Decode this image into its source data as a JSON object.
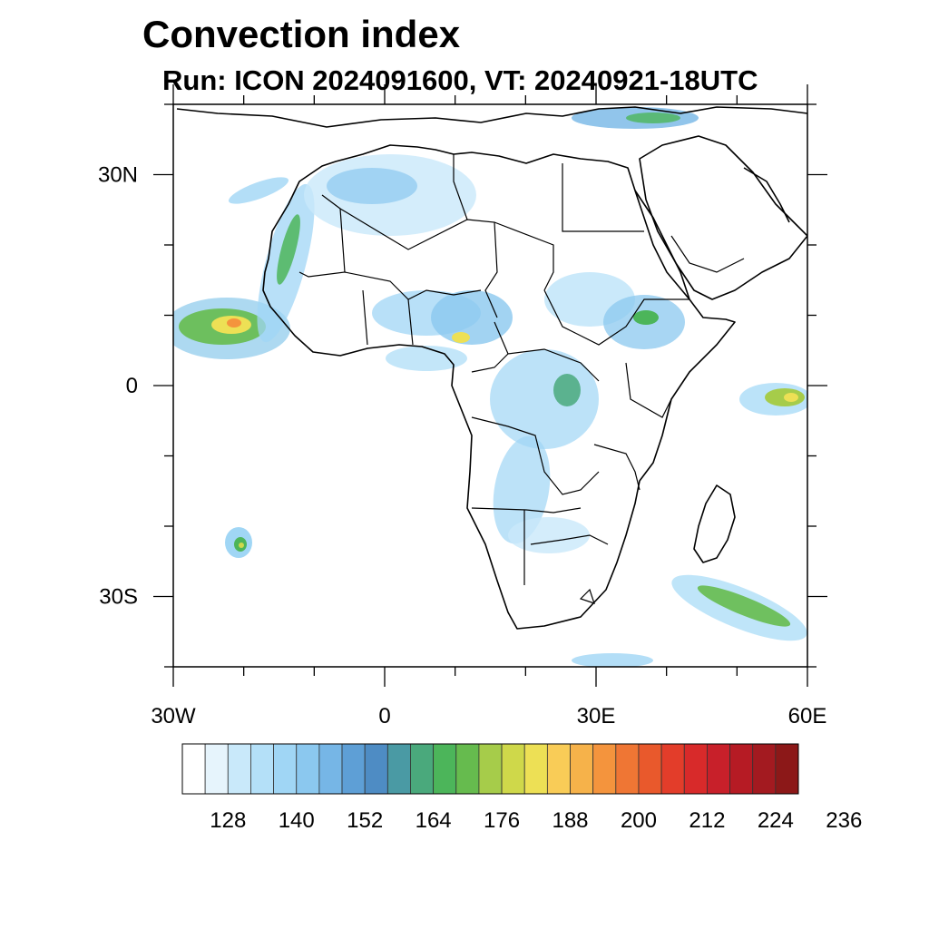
{
  "title": "Convection index",
  "subtitle": "Run: ICON 2024091600,  VT: 20240921-18UTC",
  "map": {
    "region": "Africa",
    "lon_range": [
      -30,
      60
    ],
    "lat_range": [
      -40,
      40
    ],
    "lat_ticks": [
      {
        "value": 30,
        "label": "30N"
      },
      {
        "value": 0,
        "label": "0"
      },
      {
        "value": -30,
        "label": "30S"
      }
    ],
    "lon_ticks": [
      {
        "value": -30,
        "label": "30W"
      },
      {
        "value": 0,
        "label": "0"
      },
      {
        "value": 30,
        "label": "30E"
      },
      {
        "value": 60,
        "label": "60E"
      }
    ]
  },
  "colorbar": {
    "colors": [
      "#ffffff",
      "#e6f4fc",
      "#c9e9fa",
      "#b4e0f8",
      "#a0d6f5",
      "#8bc8ef",
      "#76b6e6",
      "#5e9fd6",
      "#4e8cc4",
      "#4a9aa4",
      "#4aa97c",
      "#4cb55a",
      "#66bb4e",
      "#a6cc4a",
      "#cfd84a",
      "#ede055",
      "#f9cc57",
      "#f6b24a",
      "#f4943d",
      "#ef7634",
      "#e9592c",
      "#e33d2a",
      "#d82a2a",
      "#c8202a",
      "#b61b24",
      "#a31a20",
      "#8c1818"
    ],
    "labels": [
      "128",
      "140",
      "152",
      "164",
      "176",
      "188",
      "200",
      "212",
      "224",
      "236"
    ]
  }
}
